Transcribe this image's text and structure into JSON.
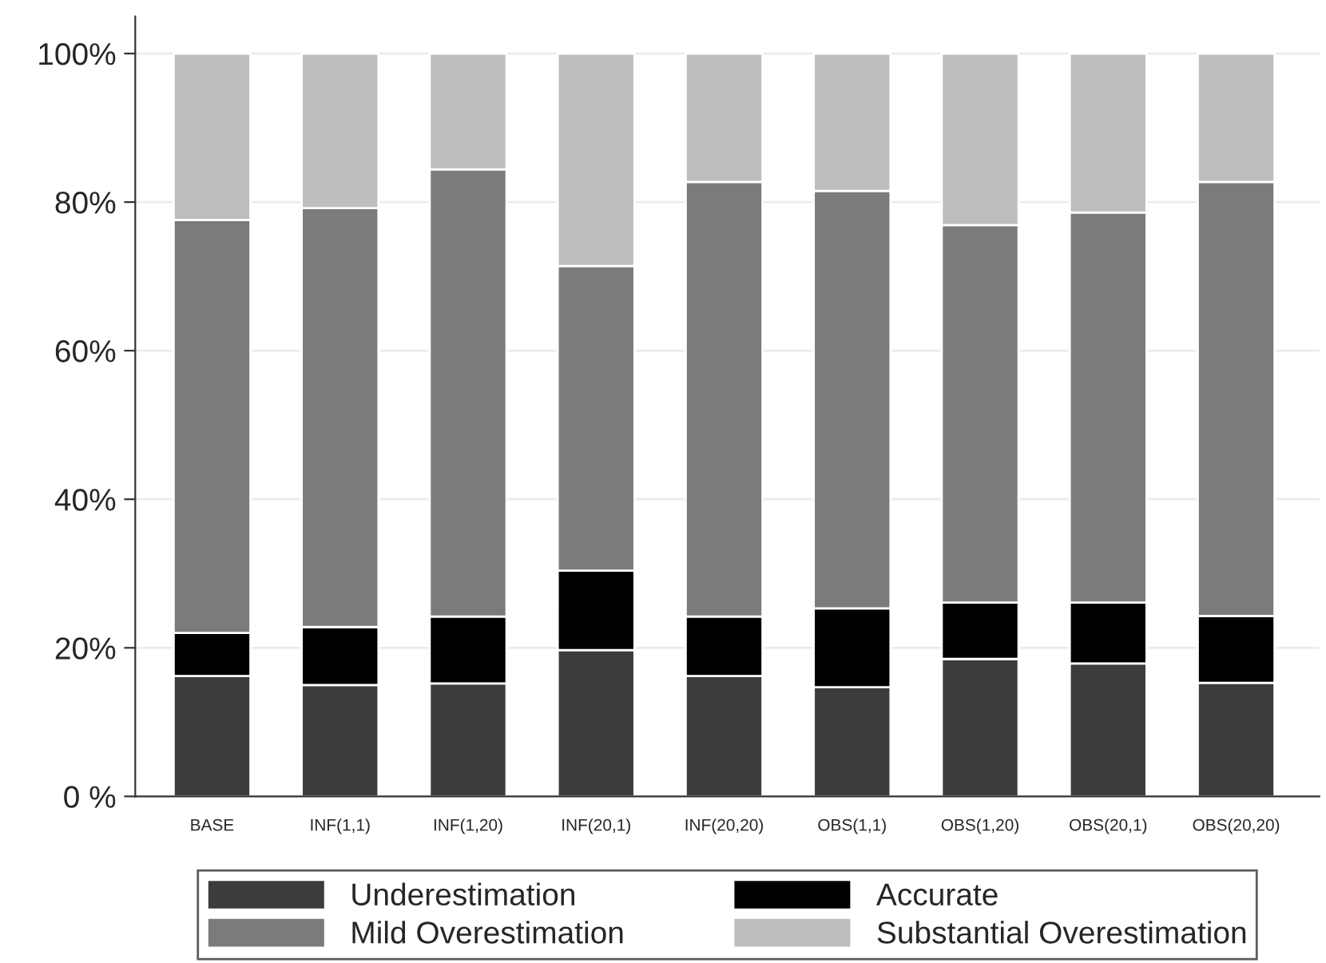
{
  "chart_data": {
    "type": "bar",
    "stacked": true,
    "categories": [
      "BASE",
      "INF(1,1)",
      "INF(1,20)",
      "INF(20,1)",
      "INF(20,20)",
      "OBS(1,1)",
      "OBS(1,20)",
      "OBS(20,1)",
      "OBS(20,20)"
    ],
    "series": [
      {
        "name": "Underestimation",
        "color": "#3c3c3c",
        "values": [
          16.2,
          15.0,
          15.2,
          19.7,
          16.2,
          14.7,
          18.5,
          17.9,
          15.3
        ]
      },
      {
        "name": "Accurate",
        "color": "#000000",
        "values": [
          5.8,
          7.8,
          9.0,
          10.7,
          8.0,
          10.6,
          7.6,
          8.2,
          9.0
        ]
      },
      {
        "name": "Mild Overestimation",
        "color": "#7b7b7b",
        "values": [
          55.6,
          56.4,
          60.2,
          41.0,
          58.5,
          56.2,
          50.8,
          52.5,
          58.4
        ]
      },
      {
        "name": "Substantial Overestimation",
        "color": "#bdbdbd",
        "values": [
          22.4,
          20.8,
          15.6,
          28.6,
          17.3,
          18.5,
          23.1,
          21.4,
          17.3
        ]
      }
    ],
    "ylim": [
      0,
      105
    ],
    "yticks": [
      {
        "value": 0,
        "label": "0 %"
      },
      {
        "value": 20,
        "label": "20%"
      },
      {
        "value": 40,
        "label": "40%"
      },
      {
        "value": 60,
        "label": "60%"
      },
      {
        "value": 80,
        "label": "80%"
      },
      {
        "value": 100,
        "label": "100%"
      }
    ],
    "grid": "y",
    "legend": "bottom"
  }
}
